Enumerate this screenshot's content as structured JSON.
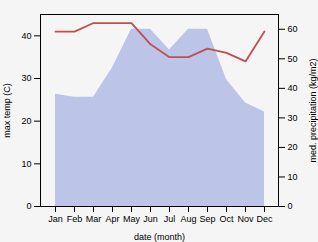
{
  "chart_data": {
    "type": "line",
    "xlabel": "date (month)",
    "ylabel": "max temp (C)",
    "y2label": "med. precipitation (kg/m2)",
    "categories": [
      "Jan",
      "Feb",
      "Mar",
      "Apr",
      "May",
      "Jun",
      "Jul",
      "Aug",
      "Sep",
      "Oct",
      "Nov",
      "Dec"
    ],
    "series": [
      {
        "type": "area",
        "axis": "y2",
        "color": "#bcc5e8",
        "values": [
          38,
          37,
          37,
          47,
          60,
          60,
          53,
          60,
          60,
          43,
          35,
          32
        ]
      },
      {
        "type": "line",
        "color": "#c0504d",
        "values": [
          41,
          41,
          43,
          43,
          43,
          38,
          35,
          35,
          37,
          36,
          34,
          41
        ]
      }
    ],
    "ylim": [
      0,
      45
    ],
    "yticks": [
      0,
      10,
      20,
      30,
      40
    ],
    "y2lim": [
      0,
      65
    ],
    "y2ticks": [
      0,
      10,
      20,
      30,
      40,
      50,
      60
    ],
    "grid": false
  }
}
